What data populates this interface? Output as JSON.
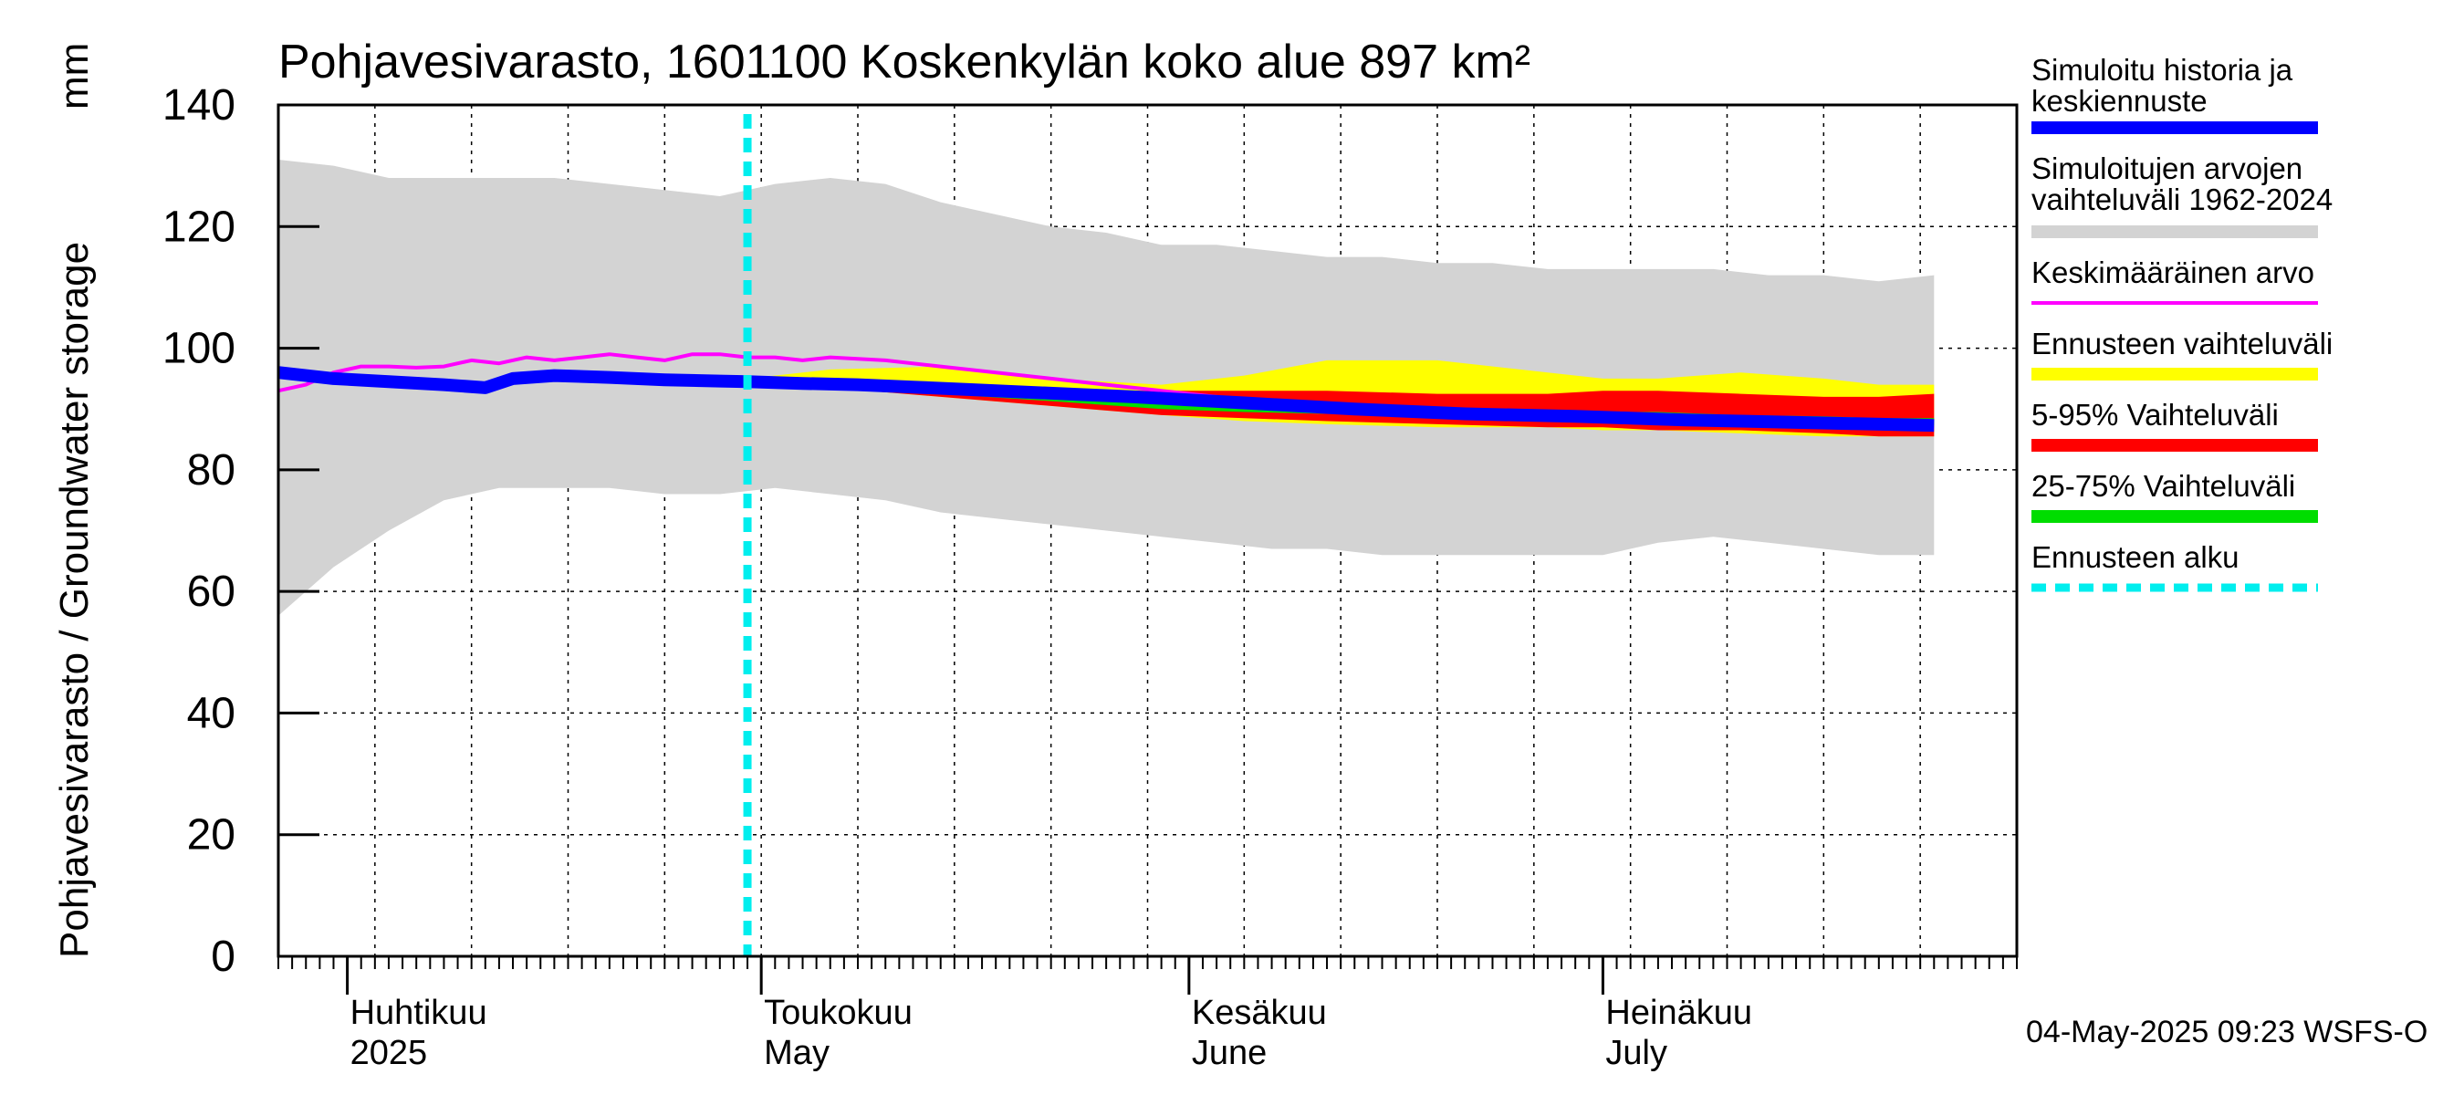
{
  "chart_data": {
    "type": "area",
    "title": "Pohjavesivarasto, 1601100 Koskenkylän koko alue 897 km²",
    "ylabel": "Pohjavesivarasto / Groundwater storage",
    "yunit": "mm",
    "ylim": [
      0,
      140
    ],
    "yticks": [
      0,
      20,
      40,
      60,
      80,
      100,
      120,
      140
    ],
    "x_start": "2025-03-27",
    "x_end": "2025-07-31",
    "forecast_start_day": 34,
    "months": [
      {
        "fi": "Huhtikuu",
        "en": "2025",
        "day": 5
      },
      {
        "fi": "Toukokuu",
        "en": "May",
        "day": 35
      },
      {
        "fi": "Kesäkuu",
        "en": "June",
        "day": 66
      },
      {
        "fi": "Heinäkuu",
        "en": "July",
        "day": 96
      }
    ],
    "month_lines": [
      5,
      35,
      66,
      96,
      127
    ],
    "series": [
      {
        "name": "Simuloitujen arvojen vaihteluväli 1962-2024",
        "color": "#d3d3d3",
        "type": "band",
        "days": [
          0,
          4,
          8,
          12,
          16,
          20,
          24,
          28,
          32,
          36,
          40,
          44,
          48,
          52,
          56,
          60,
          64,
          68,
          72,
          76,
          80,
          84,
          88,
          92,
          96,
          100,
          104,
          108,
          112,
          116,
          120
        ],
        "upper": [
          131,
          130,
          128,
          128,
          128,
          128,
          127,
          126,
          125,
          127,
          128,
          127,
          124,
          122,
          120,
          119,
          117,
          117,
          116,
          115,
          115,
          114,
          114,
          113,
          113,
          113,
          113,
          112,
          112,
          111,
          112
        ],
        "lower": [
          56,
          64,
          70,
          75,
          77,
          77,
          77,
          76,
          76,
          77,
          76,
          75,
          73,
          72,
          71,
          70,
          69,
          68,
          67,
          67,
          66,
          66,
          66,
          66,
          66,
          68,
          69,
          68,
          67,
          66,
          66
        ]
      },
      {
        "name": "Ennusteen vaihteluväli",
        "color": "#ffff00",
        "type": "band",
        "days": [
          34,
          40,
          48,
          56,
          64,
          70,
          76,
          84,
          92,
          96,
          100,
          106,
          112,
          116,
          120
        ],
        "upper": [
          95,
          96.5,
          97,
          95,
          94,
          95.5,
          98,
          98,
          96,
          95,
          95,
          96,
          95,
          94,
          94
        ],
        "lower": [
          94.5,
          93.5,
          92,
          90.5,
          89,
          88,
          87.5,
          87,
          87,
          86.5,
          86.5,
          86,
          85.5,
          85.5,
          85.5
        ]
      },
      {
        "name": "5-95% Vaihteluväli",
        "color": "#ff0000",
        "type": "band",
        "days": [
          34,
          40,
          48,
          56,
          64,
          70,
          76,
          84,
          92,
          96,
          100,
          106,
          112,
          116,
          120
        ],
        "upper": [
          94.8,
          94.2,
          93.5,
          93,
          93,
          93,
          93,
          92.5,
          92.5,
          93,
          93,
          92.5,
          92,
          92,
          92.5
        ],
        "lower": [
          94.5,
          93.5,
          92,
          90.5,
          89,
          88.5,
          88,
          87.5,
          87,
          87,
          86.5,
          86.5,
          86,
          85.5,
          85.5
        ]
      },
      {
        "name": "25-75% Vaihteluväli",
        "color": "#00dd00",
        "type": "band",
        "days": [
          34,
          40,
          48,
          56,
          64,
          70,
          76,
          84,
          92,
          96,
          100,
          106,
          112,
          116,
          120
        ],
        "upper": [
          94.7,
          94,
          93,
          92,
          91,
          90.5,
          90.5,
          90,
          89.8,
          89.5,
          89.5,
          89,
          88.8,
          88.5,
          88.5
        ],
        "lower": [
          94.5,
          93.7,
          92.5,
          91.3,
          90,
          89.5,
          89.2,
          88.8,
          88.5,
          88.2,
          88,
          87.7,
          87.4,
          87.1,
          87
        ]
      },
      {
        "name": "Keskimääräinen arvo",
        "color": "#ff00ff",
        "type": "line",
        "days": [
          0,
          2,
          4,
          6,
          8,
          10,
          12,
          14,
          16,
          18,
          20,
          22,
          24,
          26,
          28,
          30,
          32,
          34,
          36,
          38,
          40,
          44,
          48,
          52,
          56,
          60,
          64,
          68,
          72,
          76,
          80,
          84,
          88,
          92,
          96,
          100,
          104,
          108,
          112,
          116,
          120
        ],
        "values": [
          93,
          94,
          96,
          97,
          97,
          96.8,
          97,
          98,
          97.5,
          98.5,
          98,
          98.5,
          99,
          98.5,
          98,
          99,
          99,
          98.5,
          98.5,
          98,
          98.5,
          98,
          97,
          96,
          95,
          94,
          93,
          92,
          91,
          90,
          89.5,
          89,
          89,
          88.5,
          88.5,
          88,
          88,
          87.5,
          87.5,
          87,
          87
        ]
      },
      {
        "name": "Simuloitu historia ja keskiennuste",
        "color": "#0000ff",
        "type": "line",
        "days": [
          0,
          4,
          8,
          12,
          15,
          17,
          20,
          24,
          28,
          32,
          34,
          38,
          42,
          46,
          50,
          54,
          58,
          62,
          66,
          70,
          74,
          78,
          82,
          86,
          90,
          94,
          98,
          102,
          106,
          110,
          114,
          118,
          120
        ],
        "values": [
          96,
          95,
          94.5,
          94,
          93.5,
          95,
          95.5,
          95.2,
          94.8,
          94.6,
          94.5,
          94.2,
          94,
          93.6,
          93.2,
          92.8,
          92.4,
          92,
          91.5,
          91,
          90.5,
          90,
          89.6,
          89.2,
          89,
          88.8,
          88.5,
          88.2,
          88,
          87.8,
          87.6,
          87.4,
          87.3
        ]
      }
    ],
    "legend": [
      {
        "label": "Simuloitu historia ja keskiennuste",
        "color": "#0000ff",
        "style": "solid"
      },
      {
        "label": "Simuloitujen arvojen vaihteluväli 1962-2024",
        "color": "#d3d3d3",
        "style": "solid"
      },
      {
        "label": "Keskimääräinen arvo",
        "color": "#ff00ff",
        "style": "thin"
      },
      {
        "label": "Ennusteen vaihteluväli",
        "color": "#ffff00",
        "style": "solid"
      },
      {
        "label": "5-95% Vaihteluväli",
        "color": "#ff0000",
        "style": "solid"
      },
      {
        "label": "25-75% Vaihteluväli",
        "color": "#00dd00",
        "style": "solid"
      },
      {
        "label": "Ennusteen alku",
        "color": "#00eeee",
        "style": "dashed"
      }
    ],
    "footer": "04-May-2025 09:23 WSFS-O"
  }
}
